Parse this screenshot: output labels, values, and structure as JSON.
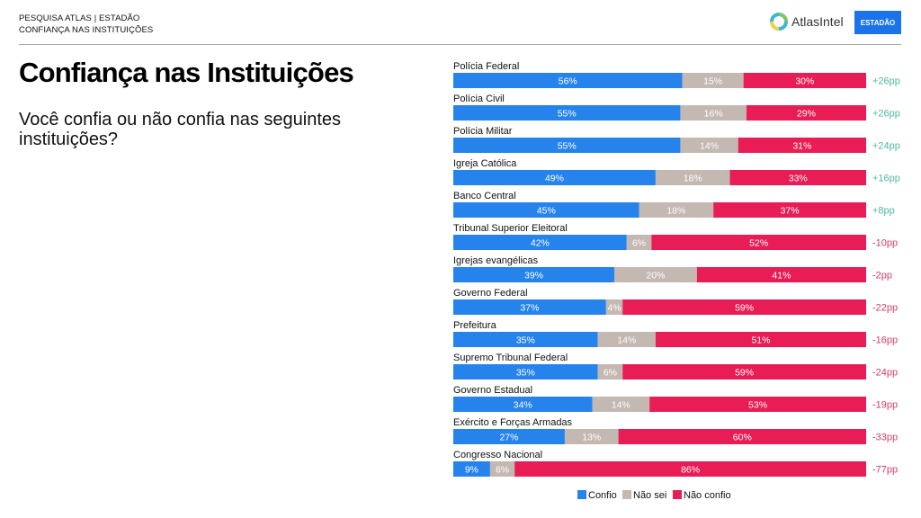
{
  "header": {
    "line1": "PESQUISA ATLAS | ESTADÃO",
    "line2": "CONFIANÇA NAS INSTITUIÇÕES",
    "logo_atlas": "AtlasIntel",
    "logo_estadao": "ESTADÃO"
  },
  "title": "Confiança nas Instituições",
  "subtitle": "Você confia ou não confia nas seguintes instituições?",
  "colors": {
    "confio": "#2683ec",
    "nao_sei": "#c4b8b2",
    "nao_confio": "#e81d55",
    "positive": "#4fb89a",
    "negative": "#d13c6a"
  },
  "chart_data": {
    "type": "bar",
    "orientation": "horizontal-stacked-100",
    "title": "Confiança nas Instituições",
    "xlabel": "",
    "ylabel": "",
    "xlim": [
      0,
      100
    ],
    "legend_position": "bottom",
    "categories": [
      "Polícia Federal",
      "Polícia Civil",
      "Polícia Militar",
      "Igreja Católica",
      "Banco Central",
      "Tribunal Superior Eleitoral",
      "Igrejas evangélicas",
      "Governo Federal",
      "Prefeitura",
      "Supremo Tribunal Federal",
      "Governo Estadual",
      "Exército e Forças Armadas",
      "Congresso Nacional"
    ],
    "series": [
      {
        "name": "Confio",
        "values": [
          56,
          55,
          55,
          49,
          45,
          42,
          39,
          37,
          35,
          35,
          34,
          27,
          9
        ]
      },
      {
        "name": "Não sei",
        "values": [
          15,
          16,
          14,
          18,
          18,
          6,
          20,
          4,
          14,
          6,
          14,
          13,
          6
        ]
      },
      {
        "name": "Não confio",
        "values": [
          30,
          29,
          31,
          33,
          37,
          52,
          41,
          59,
          51,
          59,
          53,
          60,
          86
        ]
      }
    ],
    "net_labels": [
      "+26pp",
      "+26pp",
      "+24pp",
      "+16pp",
      "+8pp",
      "-10pp",
      "-2pp",
      "-22pp",
      "-16pp",
      "-24pp",
      "-19pp",
      "-33pp",
      "-77pp"
    ],
    "value_suffix": "%"
  }
}
